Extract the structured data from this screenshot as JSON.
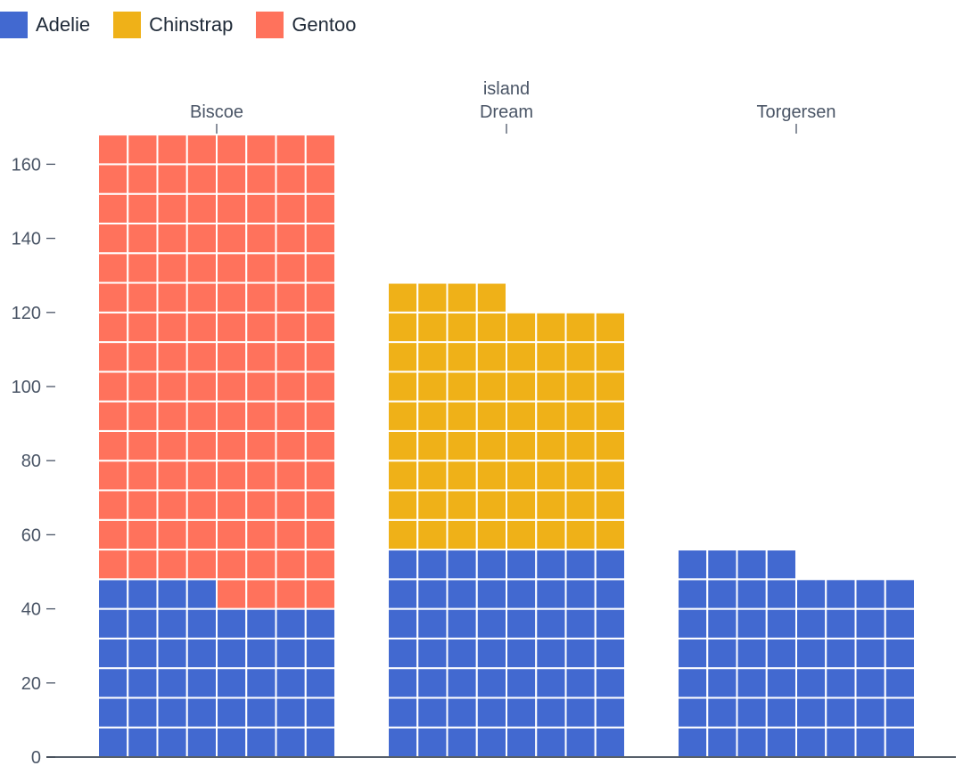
{
  "chart_data": {
    "type": "bar",
    "subtype": "waffle (stacked, 8 units wide, 1 cell = 1 penguin)",
    "categories": [
      "Biscoe",
      "Dream",
      "Torgersen"
    ],
    "series": [
      {
        "name": "Adelie",
        "color": "#4269d0",
        "values": [
          44,
          56,
          52
        ]
      },
      {
        "name": "Chinstrap",
        "color": "#efb118",
        "values": [
          0,
          68,
          0
        ]
      },
      {
        "name": "Gentoo",
        "color": "#ff725c",
        "values": [
          124,
          0,
          0
        ]
      }
    ],
    "xlabel": "island",
    "ylabel": "",
    "yticks": [
      0,
      20,
      40,
      60,
      80,
      100,
      120,
      140,
      160
    ],
    "ylim": [
      0,
      170
    ],
    "legend_position": "top-left",
    "x_axis_position": "top"
  }
}
